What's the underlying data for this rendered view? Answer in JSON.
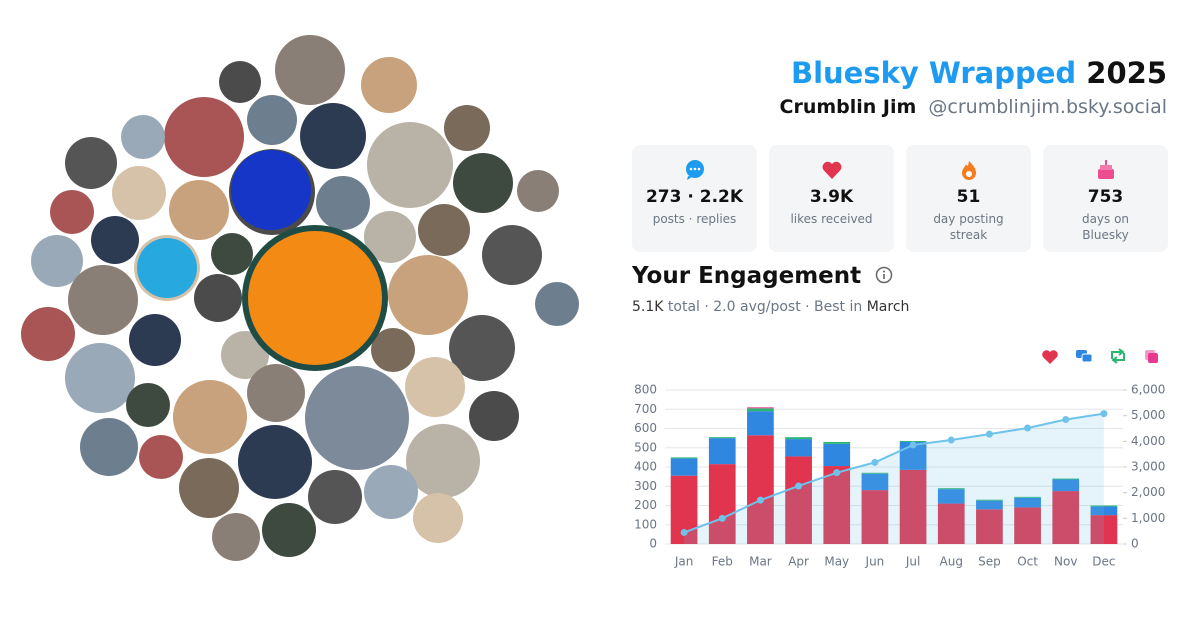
{
  "header": {
    "title": "Bluesky Wrapped",
    "year": "2025",
    "name": "Crumblin Jim",
    "handle": "@crumblinjim.bsky.social"
  },
  "stats": [
    {
      "value": "273 · 2.2K",
      "label": "posts · replies"
    },
    {
      "value": "3.9K",
      "label": "likes received"
    },
    {
      "value": "51",
      "label": "day posting streak"
    },
    {
      "value": "753",
      "label": "days on Bluesky"
    }
  ],
  "engagement": {
    "title": "Your Engagement",
    "summary": [
      "5.1K",
      "total · 2.0 avg/post · Best in",
      "March"
    ]
  },
  "chart_data": {
    "type": "bar",
    "stacked": true,
    "categories": [
      "Jan",
      "Feb",
      "Mar",
      "Apr",
      "May",
      "Jun",
      "Jul",
      "Aug",
      "Sep",
      "Oct",
      "Nov",
      "Dec"
    ],
    "series": [
      {
        "color": "#e0344f",
        "values": [
          355,
          415,
          565,
          455,
          405,
          280,
          385,
          210,
          180,
          190,
          275,
          150
        ]
      },
      {
        "color": "#2f87e0",
        "values": [
          90,
          135,
          125,
          90,
          115,
          85,
          145,
          75,
          45,
          50,
          60,
          45
        ]
      },
      {
        "color": "#2bb673",
        "values": [
          5,
          5,
          15,
          10,
          10,
          5,
          5,
          5,
          5,
          5,
          5,
          5
        ]
      },
      {
        "color": "#e8388f",
        "values": [
          0,
          0,
          5,
          0,
          0,
          0,
          0,
          0,
          0,
          0,
          0,
          0
        ]
      },
      {
        "type": "line",
        "axis": "y2",
        "color": "#6fc3ea",
        "values": [
          450,
          1000,
          1710,
          2260,
          2780,
          3180,
          3860,
          4050,
          4280,
          4520,
          4850,
          5080
        ]
      }
    ],
    "ylim": [
      0,
      800
    ],
    "yticks": [
      0,
      100,
      200,
      300,
      400,
      500,
      600,
      700,
      800
    ],
    "y2lim": [
      0,
      6000
    ],
    "y2ticks": [
      0,
      {
        "value": 1000,
        "label": "1,000"
      },
      {
        "value": 2000,
        "label": "2,000"
      },
      {
        "value": 3000,
        "label": "3,000"
      },
      {
        "value": 4000,
        "label": "4,000"
      },
      {
        "value": 5000,
        "label": "5,000"
      },
      {
        "value": 6000,
        "label": "6,000"
      }
    ],
    "grid": true
  }
}
